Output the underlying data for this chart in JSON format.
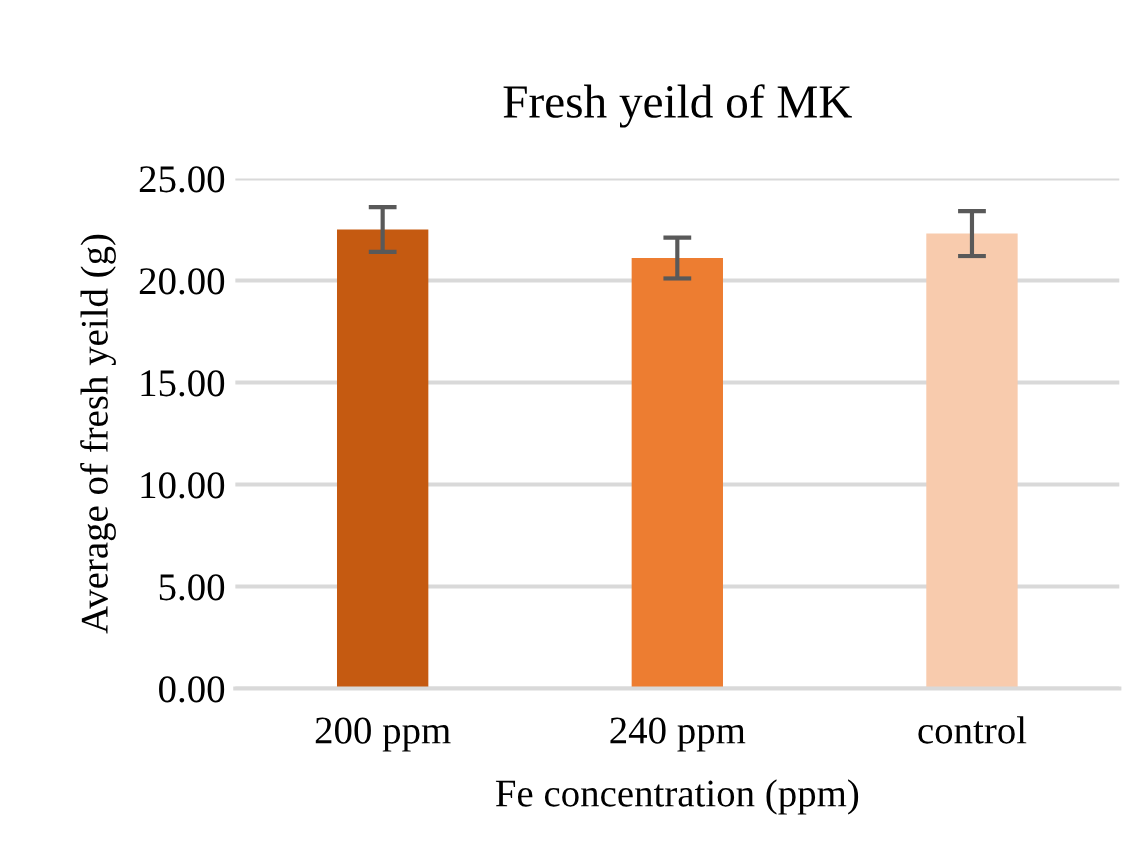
{
  "chart_data": {
    "type": "bar",
    "title": "Fresh yeild of MK",
    "xlabel": "Fe concentration (ppm)",
    "ylabel": "Average of fresh yeild (g)",
    "categories": [
      "200 ppm",
      "240 ppm",
      "control"
    ],
    "values": [
      22.5,
      21.1,
      22.3
    ],
    "colors": [
      "#c55a11",
      "#ed7d31",
      "#f8cbad"
    ],
    "errors": [
      1.1,
      1.0,
      1.1
    ],
    "ylim": [
      0,
      25
    ],
    "yticks": [
      {
        "value": 0,
        "label": "0.00"
      },
      {
        "value": 5,
        "label": "5.00"
      },
      {
        "value": 10,
        "label": "10.00"
      },
      {
        "value": 15,
        "label": "15.00"
      },
      {
        "value": 20,
        "label": "20.00"
      },
      {
        "value": 25,
        "label": "25.00"
      }
    ],
    "grid": "y",
    "legend": false
  }
}
